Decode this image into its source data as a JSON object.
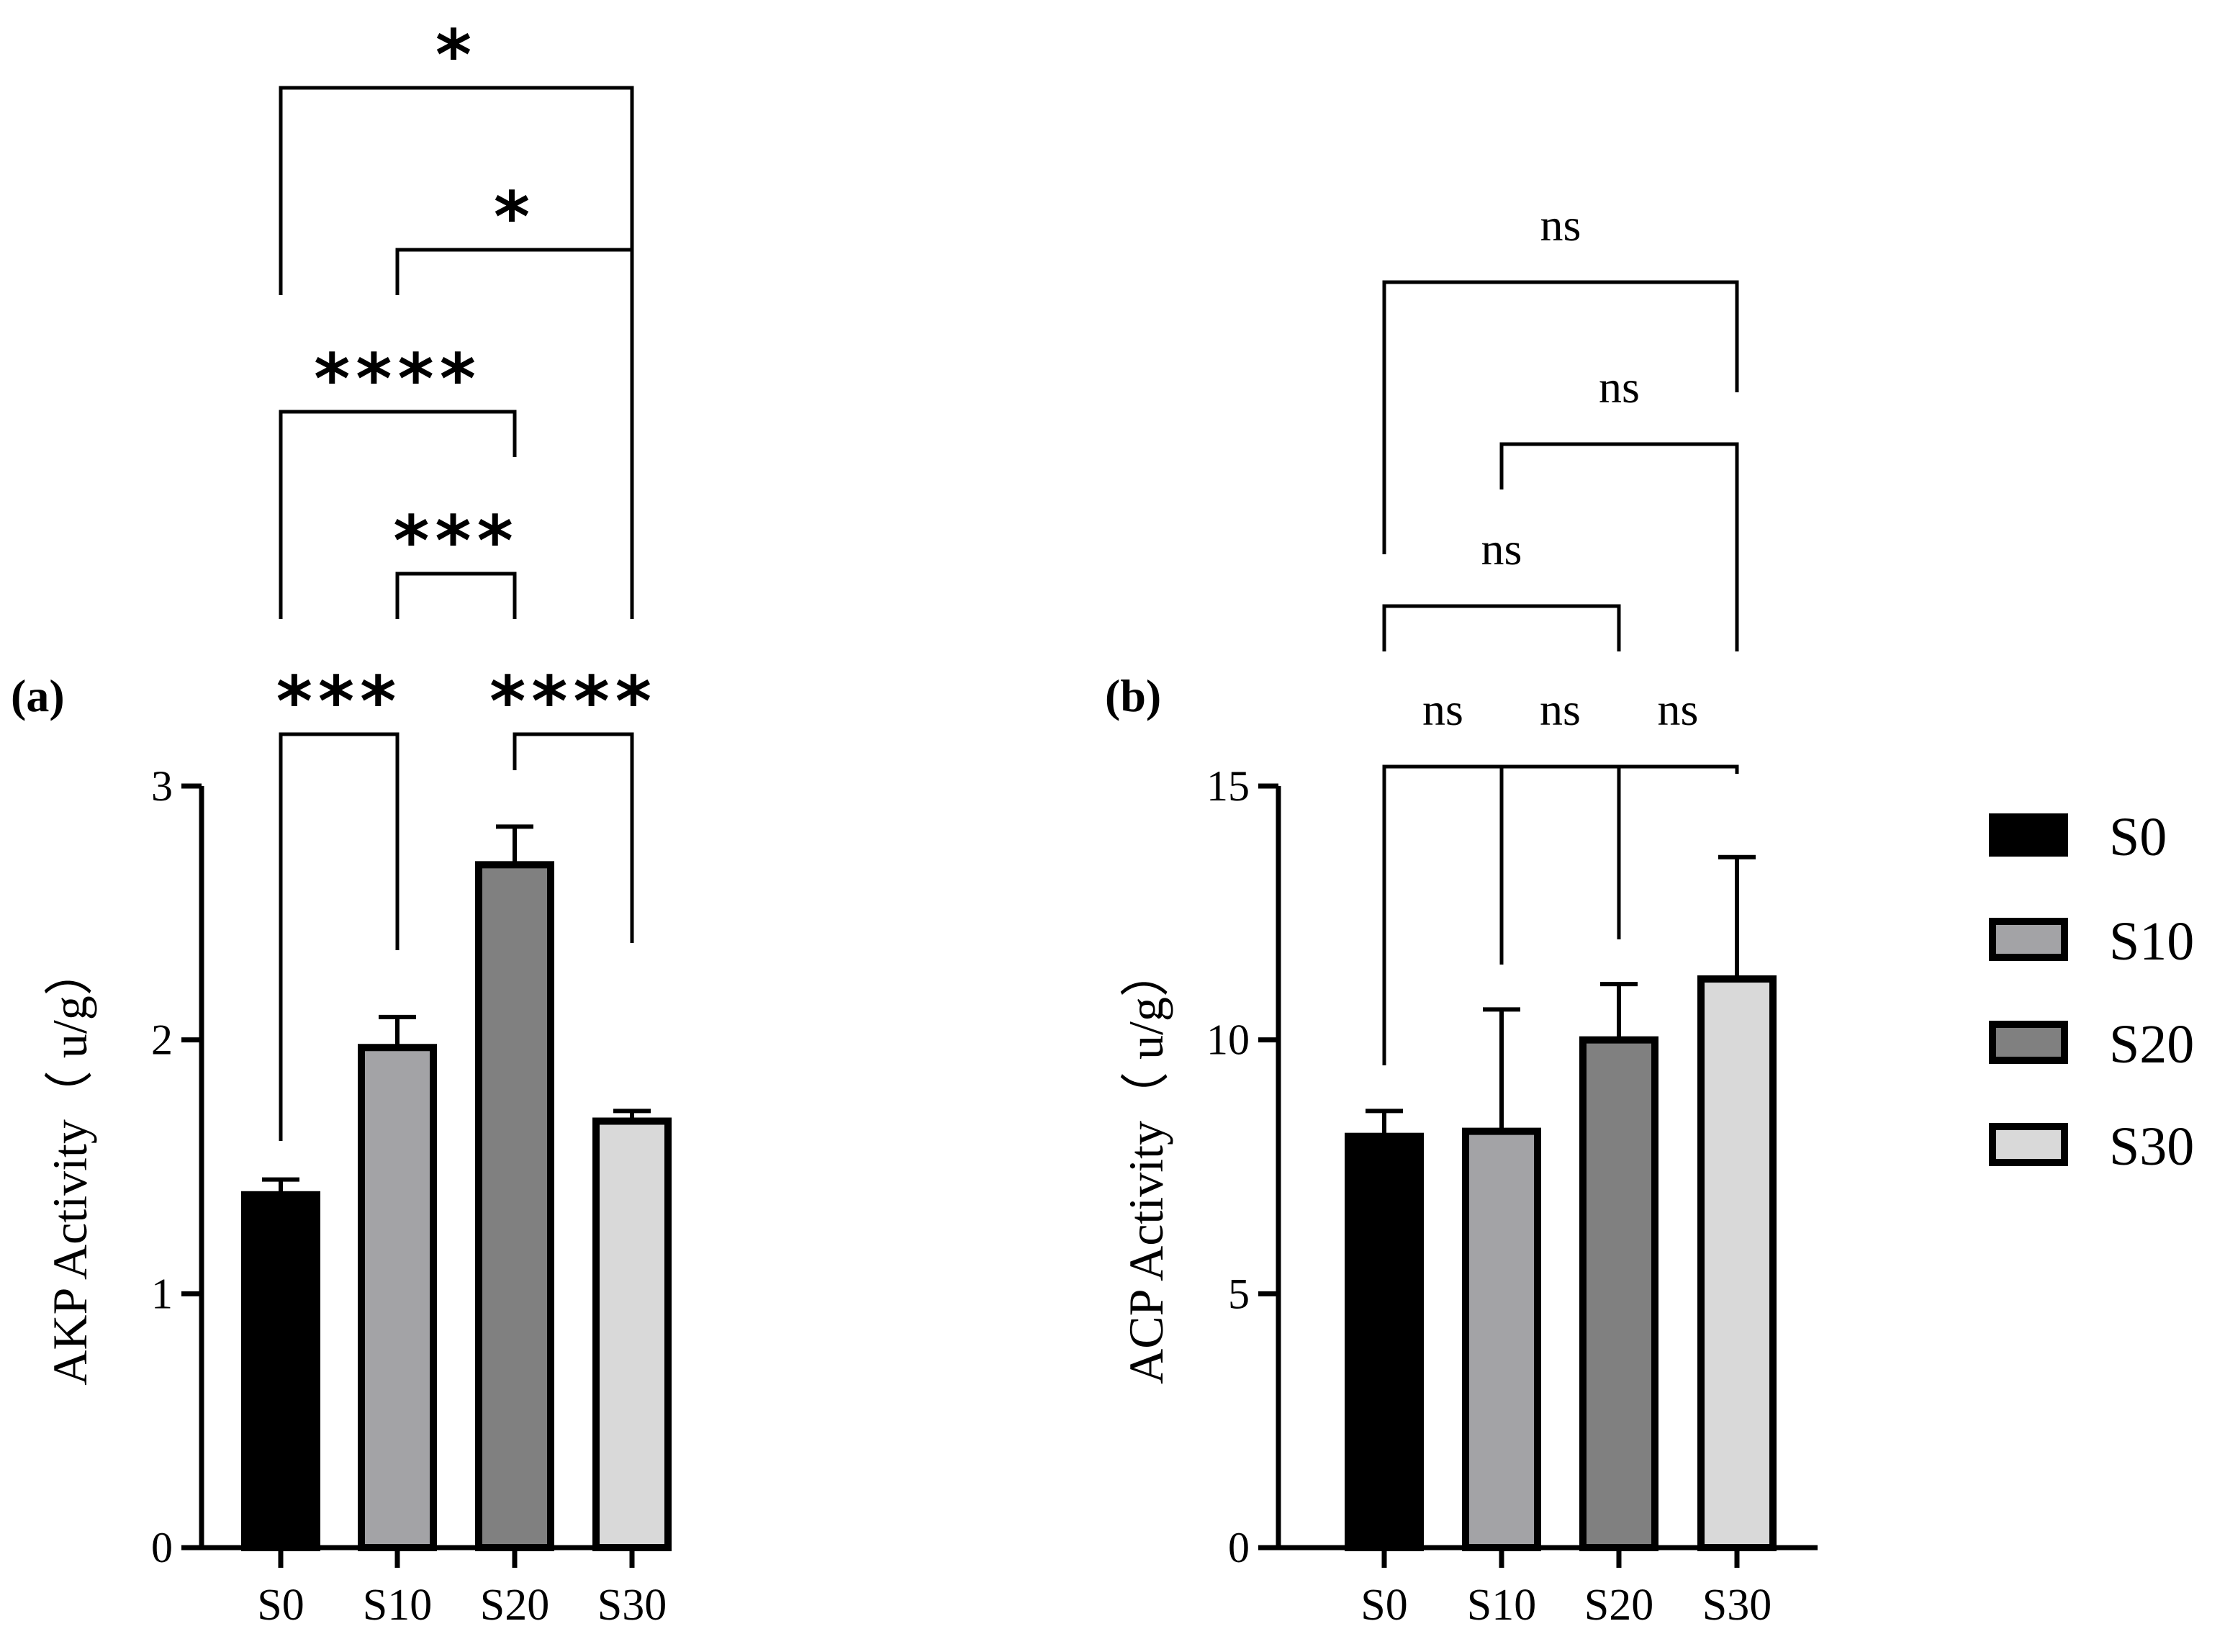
{
  "chart_data": [
    {
      "panel_label": "(a)",
      "type": "bar",
      "categories": [
        "S0",
        "S10",
        "S20",
        "S30"
      ],
      "values": [
        1.39,
        1.97,
        2.69,
        1.68
      ],
      "errors": [
        0.06,
        0.12,
        0.15,
        0.04
      ],
      "ylabel": "AKP Activity（ u/g）",
      "ylim": [
        0,
        3
      ],
      "yticks": [
        "0",
        "1",
        "2",
        "3"
      ],
      "comparisons": [
        {
          "from": 0,
          "to": 1,
          "label": "***"
        },
        {
          "from": 2,
          "to": 3,
          "label": "****"
        },
        {
          "from": 1,
          "to": 2,
          "label": "***"
        },
        {
          "from": 0,
          "to": 2,
          "label": "****"
        },
        {
          "from": 1,
          "to": 3,
          "label": "*"
        },
        {
          "from": 0,
          "to": 3,
          "label": "*"
        }
      ]
    },
    {
      "panel_label": "(b)",
      "type": "bar",
      "categories": [
        "S0",
        "S10",
        "S20",
        "S30"
      ],
      "values": [
        8.1,
        8.2,
        10.0,
        11.2
      ],
      "errors": [
        0.5,
        2.4,
        1.1,
        2.4
      ],
      "ylabel": "ACP Activity（ u/g）",
      "ylim": [
        0,
        15
      ],
      "yticks": [
        "0",
        "5",
        "10",
        "15"
      ],
      "comparisons": [
        {
          "from": 0,
          "to": 1,
          "label": "ns"
        },
        {
          "from": 1,
          "to": 2,
          "label": "ns"
        },
        {
          "from": 2,
          "to": 3,
          "label": "ns"
        },
        {
          "from": 0,
          "to": 2,
          "label": "ns"
        },
        {
          "from": 1,
          "to": 3,
          "label": "ns"
        },
        {
          "from": 0,
          "to": 3,
          "label": "ns"
        }
      ]
    }
  ],
  "legend": {
    "position": "right",
    "entries": [
      "S0",
      "S10",
      "S20",
      "S30"
    ]
  },
  "colors": {
    "S0": "#000000",
    "S10": "#a3a3a6",
    "S20": "#808080",
    "S30": "#d9d9d9",
    "outline": "#000000"
  }
}
